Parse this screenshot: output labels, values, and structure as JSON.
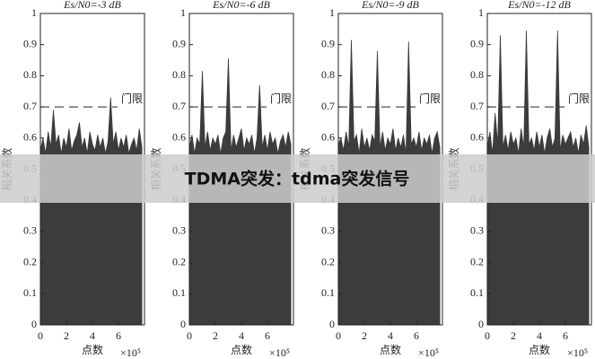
{
  "chart_data": [
    {
      "type": "area",
      "title": "Es/N0=-3 dB",
      "xlabel": "点数",
      "x_multiplier": "×10⁵",
      "ylabel": "相关系数",
      "threshold": {
        "value": 0.7,
        "label": "门限"
      },
      "color": "#3c3c3c",
      "x": [
        0,
        0.2,
        0.4,
        0.6,
        0.8,
        1,
        1.2,
        1.4,
        1.6,
        1.8,
        2,
        2.2,
        2.4,
        2.6,
        2.8,
        3,
        3.2,
        3.4,
        3.6,
        3.8,
        4,
        4.2,
        4.4,
        4.6,
        4.8,
        5,
        5.2,
        5.4,
        5.6,
        5.8,
        6,
        6.2,
        6.4,
        6.6,
        6.8,
        7,
        7.2,
        7.4,
        7.6,
        7.8
      ],
      "values": [
        0.56,
        0.6,
        0.55,
        0.62,
        0.57,
        0.69,
        0.58,
        0.61,
        0.55,
        0.6,
        0.57,
        0.63,
        0.56,
        0.59,
        0.61,
        0.65,
        0.57,
        0.6,
        0.55,
        0.62,
        0.58,
        0.56,
        0.61,
        0.57,
        0.6,
        0.55,
        0.59,
        0.73,
        0.58,
        0.62,
        0.56,
        0.6,
        0.57,
        0.61,
        0.55,
        0.58,
        0.6,
        0.56,
        0.63,
        0.57
      ],
      "xlim": [
        0,
        8
      ],
      "xticks": [
        0,
        2,
        4,
        6
      ],
      "ylim": [
        0,
        1
      ],
      "yticks": [
        0,
        0.1,
        0.2,
        0.3,
        0.4,
        0.5,
        0.6,
        0.7,
        0.8,
        0.9,
        1
      ]
    },
    {
      "type": "area",
      "title": "Es/N0=-6 dB",
      "xlabel": "点数",
      "x_multiplier": "×10⁵",
      "ylabel": "相关系数",
      "threshold": {
        "value": 0.7,
        "label": "门限"
      },
      "color": "#3c3c3c",
      "x": [
        0,
        0.2,
        0.4,
        0.6,
        0.8,
        1,
        1.2,
        1.4,
        1.6,
        1.8,
        2,
        2.2,
        2.4,
        2.6,
        2.8,
        3,
        3.2,
        3.4,
        3.6,
        3.8,
        4,
        4.2,
        4.4,
        4.6,
        4.8,
        5,
        5.2,
        5.4,
        5.6,
        5.8,
        6,
        6.2,
        6.4,
        6.6,
        6.8,
        7,
        7.2,
        7.4,
        7.6,
        7.8
      ],
      "values": [
        0.57,
        0.61,
        0.55,
        0.6,
        0.58,
        0.815,
        0.57,
        0.62,
        0.56,
        0.6,
        0.58,
        0.61,
        0.55,
        0.6,
        0.62,
        0.855,
        0.56,
        0.61,
        0.57,
        0.6,
        0.63,
        0.56,
        0.6,
        0.58,
        0.61,
        0.55,
        0.6,
        0.77,
        0.57,
        0.61,
        0.56,
        0.62,
        0.58,
        0.6,
        0.55,
        0.59,
        0.61,
        0.57,
        0.62,
        0.58
      ],
      "xlim": [
        0,
        8
      ],
      "xticks": [
        0,
        2,
        4,
        6
      ],
      "ylim": [
        0,
        1
      ],
      "yticks": [
        0,
        0.1,
        0.2,
        0.3,
        0.4,
        0.5,
        0.6,
        0.7,
        0.8,
        0.9,
        1
      ]
    },
    {
      "type": "area",
      "title": "Es/N0=-9 dB",
      "xlabel": "点数",
      "x_multiplier": "×10⁵",
      "ylabel": "相关系数",
      "threshold": {
        "value": 0.7,
        "label": "门限"
      },
      "color": "#3c3c3c",
      "x": [
        0,
        0.2,
        0.4,
        0.6,
        0.8,
        1,
        1.2,
        1.4,
        1.6,
        1.8,
        2,
        2.2,
        2.4,
        2.6,
        2.8,
        3,
        3.2,
        3.4,
        3.6,
        3.8,
        4,
        4.2,
        4.4,
        4.6,
        4.8,
        5,
        5.2,
        5.4,
        5.6,
        5.8,
        6,
        6.2,
        6.4,
        6.6,
        6.8,
        7,
        7.2,
        7.4,
        7.6,
        7.8
      ],
      "values": [
        0.58,
        0.6,
        0.56,
        0.62,
        0.57,
        0.915,
        0.59,
        0.61,
        0.55,
        0.63,
        0.57,
        0.6,
        0.56,
        0.61,
        0.59,
        0.88,
        0.57,
        0.62,
        0.56,
        0.6,
        0.58,
        0.63,
        0.56,
        0.6,
        0.57,
        0.61,
        0.55,
        0.91,
        0.58,
        0.6,
        0.57,
        0.62,
        0.56,
        0.6,
        0.58,
        0.61,
        0.55,
        0.6,
        0.62,
        0.57
      ],
      "xlim": [
        0,
        8
      ],
      "xticks": [
        0,
        2,
        4,
        6
      ],
      "ylim": [
        0,
        1
      ],
      "yticks": [
        0,
        0.1,
        0.2,
        0.3,
        0.4,
        0.5,
        0.6,
        0.7,
        0.8,
        0.9,
        1
      ]
    },
    {
      "type": "area",
      "title": "Es/N0=-12 dB",
      "xlabel": "点数",
      "x_multiplier": "×10⁵",
      "ylabel": "相关系数",
      "threshold": {
        "value": 0.7,
        "label": "门限"
      },
      "color": "#3c3c3c",
      "x": [
        0,
        0.2,
        0.4,
        0.6,
        0.8,
        1,
        1.2,
        1.4,
        1.6,
        1.8,
        2,
        2.2,
        2.4,
        2.6,
        2.8,
        3,
        3.2,
        3.4,
        3.6,
        3.8,
        4,
        4.2,
        4.4,
        4.6,
        4.8,
        5,
        5.2,
        5.4,
        5.6,
        5.8,
        6,
        6.2,
        6.4,
        6.6,
        6.8,
        7,
        7.2,
        7.4,
        7.6,
        7.8
      ],
      "values": [
        0.57,
        0.62,
        0.55,
        0.68,
        0.58,
        0.93,
        0.57,
        0.61,
        0.56,
        0.62,
        0.58,
        0.6,
        0.55,
        0.63,
        0.57,
        0.945,
        0.58,
        0.6,
        0.56,
        0.62,
        0.57,
        0.61,
        0.55,
        0.6,
        0.63,
        0.57,
        0.6,
        0.945,
        0.56,
        0.61,
        0.58,
        0.6,
        0.62,
        0.57,
        0.6,
        0.55,
        0.61,
        0.58,
        0.64,
        0.57
      ],
      "xlim": [
        0,
        8
      ],
      "xticks": [
        0,
        2,
        4,
        6
      ],
      "ylim": [
        0,
        1
      ],
      "yticks": [
        0,
        0.1,
        0.2,
        0.3,
        0.4,
        0.5,
        0.6,
        0.7,
        0.8,
        0.9,
        1
      ]
    }
  ],
  "overlay_text": "TDMA突发：tdma突发信号"
}
